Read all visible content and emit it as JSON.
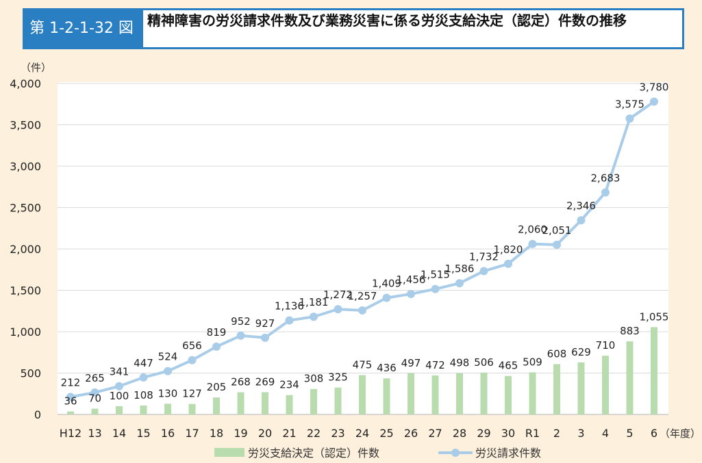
{
  "header": {
    "figure_number": "第 1-2-1-32 図",
    "title": "精神障害の労災請求件数及び業務災害に係る労災支給決定（認定）件数の推移"
  },
  "chart_data": {
    "type": "bar+line",
    "title": "精神障害の労災請求件数及び業務災害に係る労災支給決定（認定）件数の推移",
    "ylabel": "（件）",
    "xlabel": "（年度）",
    "ylim": [
      0,
      4000
    ],
    "yticks": [
      0,
      500,
      1000,
      1500,
      2000,
      2500,
      3000,
      3500,
      4000
    ],
    "ytick_labels": [
      "0",
      "500",
      "1,000",
      "1,500",
      "2,000",
      "2,500",
      "3,000",
      "3,500",
      "4,000"
    ],
    "categories": [
      "H12",
      "13",
      "14",
      "15",
      "16",
      "17",
      "18",
      "19",
      "20",
      "21",
      "22",
      "23",
      "24",
      "25",
      "26",
      "27",
      "28",
      "29",
      "30",
      "R1",
      "2",
      "3",
      "4",
      "5",
      "6"
    ],
    "series": [
      {
        "name": "労災支給決定（認定）件数",
        "type": "bar",
        "color": "#b9dcae",
        "values": [
          36,
          70,
          100,
          108,
          130,
          127,
          205,
          268,
          269,
          234,
          308,
          325,
          475,
          436,
          497,
          472,
          498,
          506,
          465,
          509,
          608,
          629,
          710,
          883,
          1055
        ]
      },
      {
        "name": "労災請求件数",
        "type": "line",
        "color": "#a9cde9",
        "values": [
          212,
          265,
          341,
          447,
          524,
          656,
          819,
          952,
          927,
          1136,
          1181,
          1272,
          1257,
          1409,
          1456,
          1515,
          1586,
          1732,
          1820,
          2060,
          2051,
          2346,
          2683,
          3575,
          3780
        ]
      }
    ],
    "legend": "bottom"
  }
}
